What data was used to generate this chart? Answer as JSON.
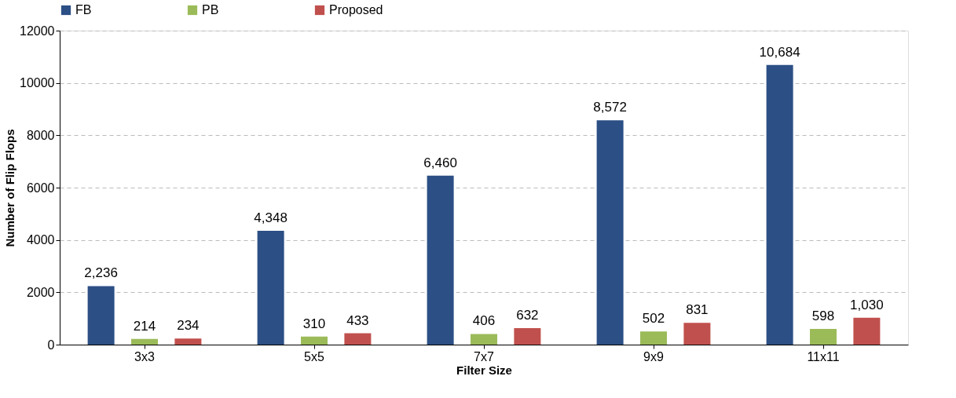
{
  "chart_data": {
    "type": "bar",
    "xlabel": "Filter Size",
    "ylabel": "Number of Flip Flops",
    "categories": [
      "3x3",
      "5x5",
      "7x7",
      "9x9",
      "11x11"
    ],
    "series": [
      {
        "name": "FB",
        "color": "#2c4f85",
        "values": [
          2236,
          4348,
          6460,
          8572,
          10684
        ],
        "value_labels": [
          "2,236",
          "4,348",
          "6,460",
          "8,572",
          "10,684"
        ]
      },
      {
        "name": "PB",
        "color": "#9bbb59",
        "values": [
          214,
          310,
          406,
          502,
          598
        ],
        "value_labels": [
          "214",
          "310",
          "406",
          "502",
          "598"
        ]
      },
      {
        "name": "Proposed",
        "color": "#c0504d",
        "values": [
          234,
          433,
          632,
          831,
          1030
        ],
        "value_labels": [
          "234",
          "433",
          "632",
          "831",
          "1,030"
        ]
      }
    ],
    "ylim": [
      0,
      12000
    ],
    "yticks": [
      0,
      2000,
      4000,
      6000,
      8000,
      10000,
      12000
    ],
    "grid": "y",
    "legend": "top"
  }
}
